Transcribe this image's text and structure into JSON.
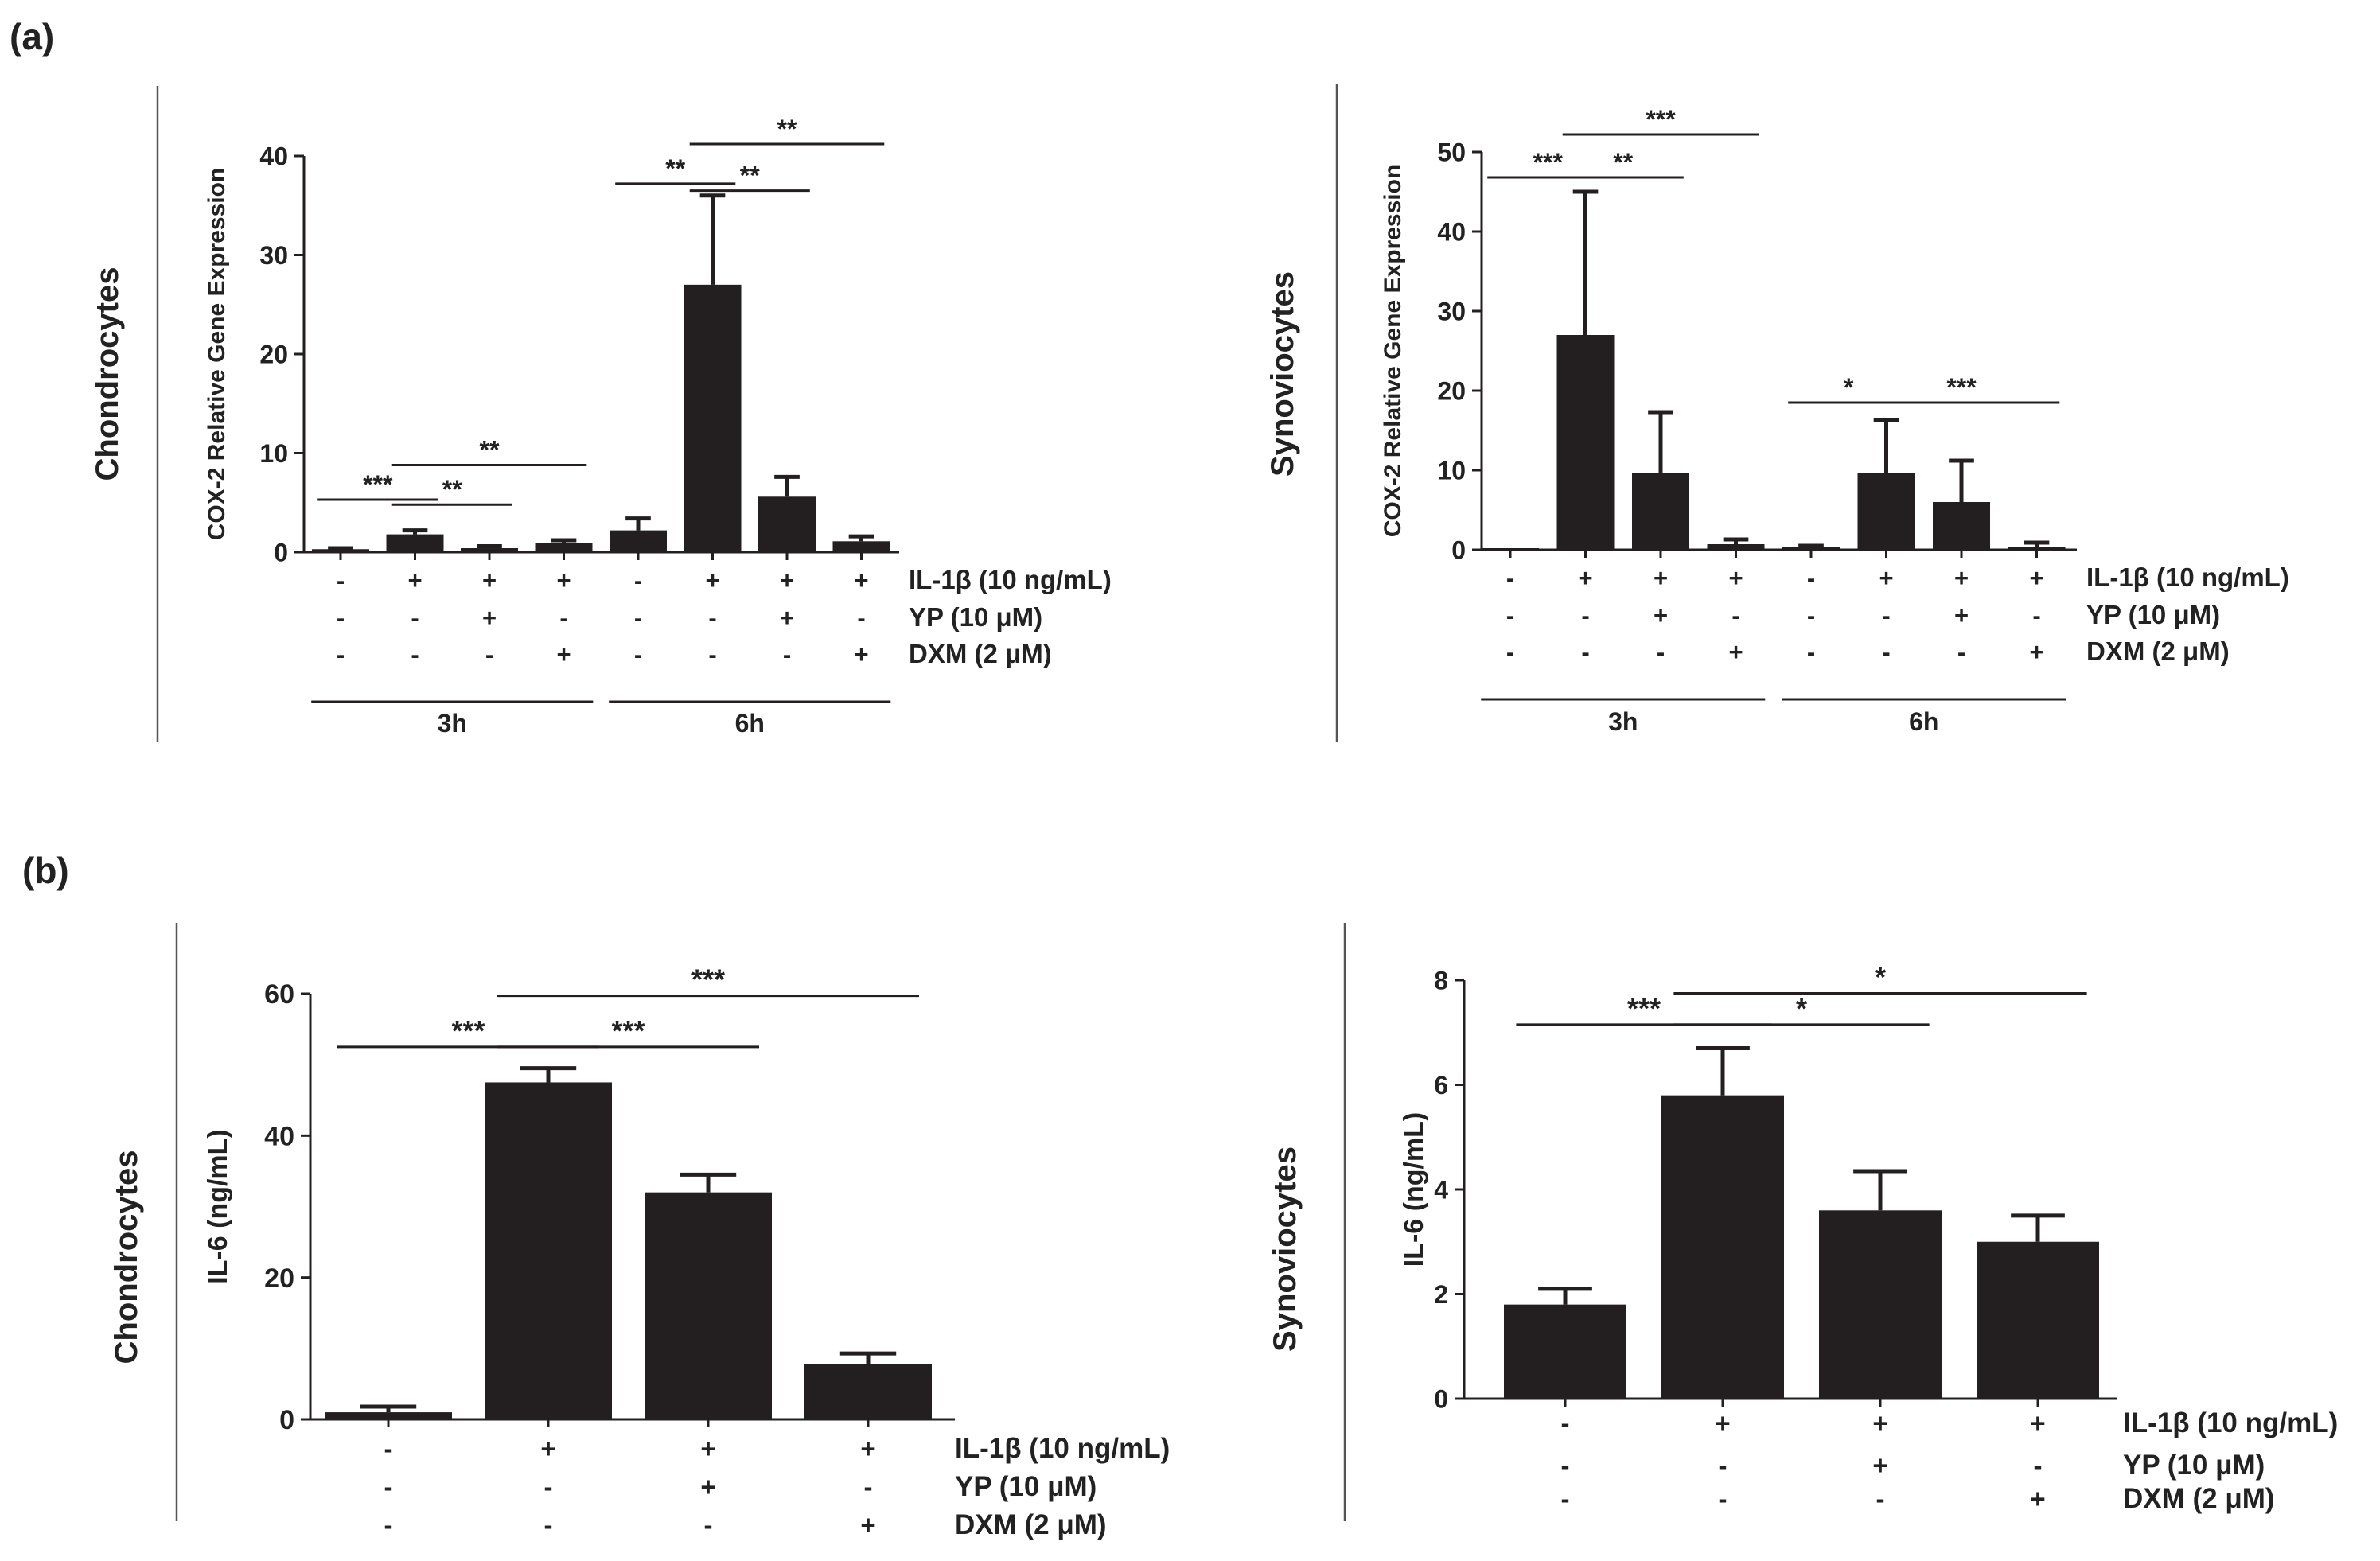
{
  "panel_labels": [
    "(a)",
    "(b)"
  ],
  "treatment_labels": {
    "il1b": "IL-1β (10 ng/mL)",
    "yp": "YP (10 μM)",
    "dxm": "DXM (2 μM)"
  },
  "conditions": {
    "il1b": [
      "-",
      "+",
      "+",
      "+"
    ],
    "yp": [
      "-",
      "-",
      "+",
      "-"
    ],
    "dxm": [
      "-",
      "-",
      "-",
      "+"
    ]
  },
  "colors": {
    "bar": "#231f20",
    "line": "#231f20",
    "text": "#222222"
  },
  "chart_data": [
    {
      "id": "a1",
      "type": "bar",
      "panel": "(a)",
      "side_label": "Chondrocytes",
      "ylabel": "COX-2 Relative Gene Expression",
      "xlabel": "",
      "ylim": [
        0,
        40
      ],
      "yticks": [
        0,
        10,
        20,
        30,
        40
      ],
      "groups": [
        "3h",
        "6h"
      ],
      "categories": [
        "3h: -/-/-",
        "3h: +/-/-",
        "3h: +/+/-",
        "3h: +/-/+",
        "6h: -/-/-",
        "6h: +/-/-",
        "6h: +/+/-",
        "6h: +/-/+"
      ],
      "values": [
        0.3,
        1.8,
        0.4,
        0.9,
        2.2,
        27,
        5.6,
        1.1
      ],
      "errors": [
        0.1,
        0.4,
        0.2,
        0.3,
        1.2,
        9,
        2,
        0.5
      ],
      "significance": [
        {
          "from": 0,
          "to": 1,
          "label": "***",
          "y": 5.3
        },
        {
          "from": 1,
          "to": 2,
          "label": "**",
          "y": 4.8
        },
        {
          "from": 1,
          "to": 3,
          "label": "**",
          "y": 8.8
        },
        {
          "from": 4,
          "to": 5,
          "label": "**",
          "y": 37.2
        },
        {
          "from": 5,
          "to": 6,
          "label": "**",
          "y": 36.5
        },
        {
          "from": 5,
          "to": 7,
          "label": "**",
          "y": 41.2
        }
      ]
    },
    {
      "id": "a2",
      "type": "bar",
      "panel": "(a)",
      "side_label": "Synoviocytes",
      "ylabel": "COX-2 Relative Gene Expression",
      "xlabel": "",
      "ylim": [
        0,
        50
      ],
      "yticks": [
        0,
        10,
        20,
        30,
        40,
        50
      ],
      "groups": [
        "3h",
        "6h"
      ],
      "categories": [
        "3h: -/-/-",
        "3h: +/-/-",
        "3h: +/+/-",
        "3h: +/-/+",
        "6h: -/-/-",
        "6h: +/-/-",
        "6h: +/+/-",
        "6h: +/-/+"
      ],
      "values": [
        0.1,
        27,
        9.6,
        0.7,
        0.3,
        9.6,
        6,
        0.4
      ],
      "errors": [
        0,
        18,
        7.7,
        0.6,
        0.2,
        6.7,
        5.2,
        0.5
      ],
      "significance": [
        {
          "from": 0,
          "to": 1,
          "label": "***",
          "y": 46.8
        },
        {
          "from": 1,
          "to": 2,
          "label": "**",
          "y": 46.8
        },
        {
          "from": 1,
          "to": 3,
          "label": "***",
          "y": 52.2
        },
        {
          "from": 4,
          "to": 5,
          "label": "*",
          "y": 18.5
        },
        {
          "from": 5,
          "to": 7,
          "label": "***",
          "y": 18.5
        }
      ]
    },
    {
      "id": "b1",
      "type": "bar",
      "panel": "(b)",
      "side_label": "Chondrocytes",
      "ylabel": "IL-6 (ng/mL)",
      "xlabel": "",
      "ylim": [
        0,
        60
      ],
      "yticks": [
        0,
        20,
        40,
        60
      ],
      "groups": [],
      "categories": [
        "-/-/-",
        "+/-/-",
        "+/+/-",
        "+/-/+"
      ],
      "values": [
        1,
        47.5,
        32,
        7.8
      ],
      "errors": [
        0.8,
        2,
        2.5,
        1.5
      ],
      "significance": [
        {
          "from": 0,
          "to": 1,
          "label": "***",
          "y": 52.5
        },
        {
          "from": 1,
          "to": 2,
          "label": "***",
          "y": 52.5
        },
        {
          "from": 1,
          "to": 3,
          "label": "***",
          "y": 59.7
        }
      ]
    },
    {
      "id": "b2",
      "type": "bar",
      "panel": "(b)",
      "side_label": "Synoviocytes",
      "ylabel": "IL-6 (ng/mL)",
      "xlabel": "",
      "ylim": [
        0,
        8
      ],
      "yticks": [
        0,
        2,
        4,
        6,
        8
      ],
      "groups": [],
      "categories": [
        "-/-/-",
        "+/-/-",
        "+/+/-",
        "+/-/+"
      ],
      "values": [
        1.8,
        5.8,
        3.6,
        3.0
      ],
      "errors": [
        0.3,
        0.9,
        0.75,
        0.5
      ],
      "significance": [
        {
          "from": 0,
          "to": 1,
          "label": "***",
          "y": 7.15
        },
        {
          "from": 1,
          "to": 2,
          "label": "*",
          "y": 7.15
        },
        {
          "from": 1,
          "to": 3,
          "label": "*",
          "y": 7.75
        }
      ]
    }
  ]
}
